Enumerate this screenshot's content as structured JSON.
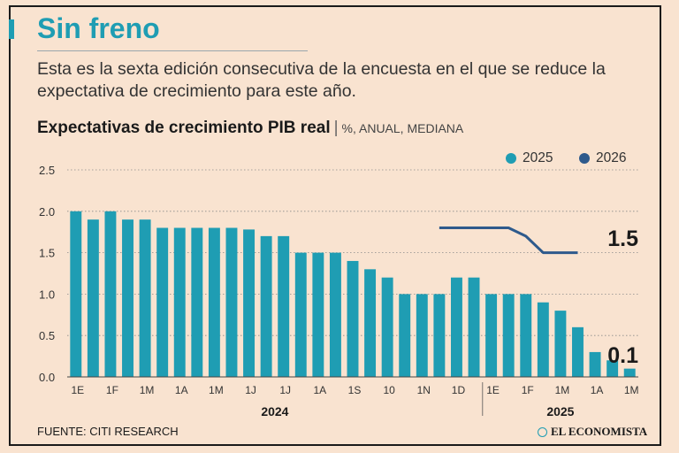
{
  "title": "Sin freno",
  "subtitle": "Esta es la sexta edición consecutiva de la encuesta en el que se reduce la expectativa de crecimiento para este año.",
  "chart_heading": {
    "main": "Expectativas de crecimiento PIB real",
    "separator": "|",
    "units": "%, ANUAL, MEDIANA"
  },
  "source": "FUENTE: CITI RESEARCH",
  "logo_text": "EL ECONOMISTA",
  "colors": {
    "series_2025": "#1f9db3",
    "series_2026": "#2e5a8c",
    "accent": "#1f9db3",
    "background": "#f9e3d0"
  },
  "chart_data": {
    "type": "bar",
    "ylim": [
      0,
      2.5
    ],
    "yticks": [
      "0.0",
      "0.5",
      "1.0",
      "1.5",
      "2.0",
      "2.5"
    ],
    "x_tick_labels": [
      "1E",
      "1F",
      "1M",
      "1A",
      "1M",
      "1J",
      "1J",
      "1A",
      "1S",
      "10",
      "1N",
      "1D",
      "1E",
      "1F",
      "1M",
      "1A",
      "1M"
    ],
    "year_labels": [
      "2024",
      "2025"
    ],
    "series": [
      {
        "name": "2025",
        "type": "bar",
        "values": [
          2.0,
          1.9,
          2.0,
          1.9,
          1.9,
          1.8,
          1.8,
          1.8,
          1.8,
          1.8,
          1.78,
          1.7,
          1.7,
          1.5,
          1.5,
          1.5,
          1.4,
          1.3,
          1.2,
          1.0,
          1.0,
          1.0,
          1.2,
          1.2,
          1.0,
          1.0,
          1.0,
          0.9,
          0.8,
          0.6,
          0.3,
          0.2,
          0.1
        ]
      },
      {
        "name": "2026",
        "type": "line",
        "values": [
          1.8,
          1.8,
          1.8,
          1.8,
          1.8,
          1.7,
          1.5,
          1.5,
          1.5
        ]
      }
    ],
    "annotations": {
      "last_2026": "1.5",
      "last_2025": "0.1"
    }
  }
}
